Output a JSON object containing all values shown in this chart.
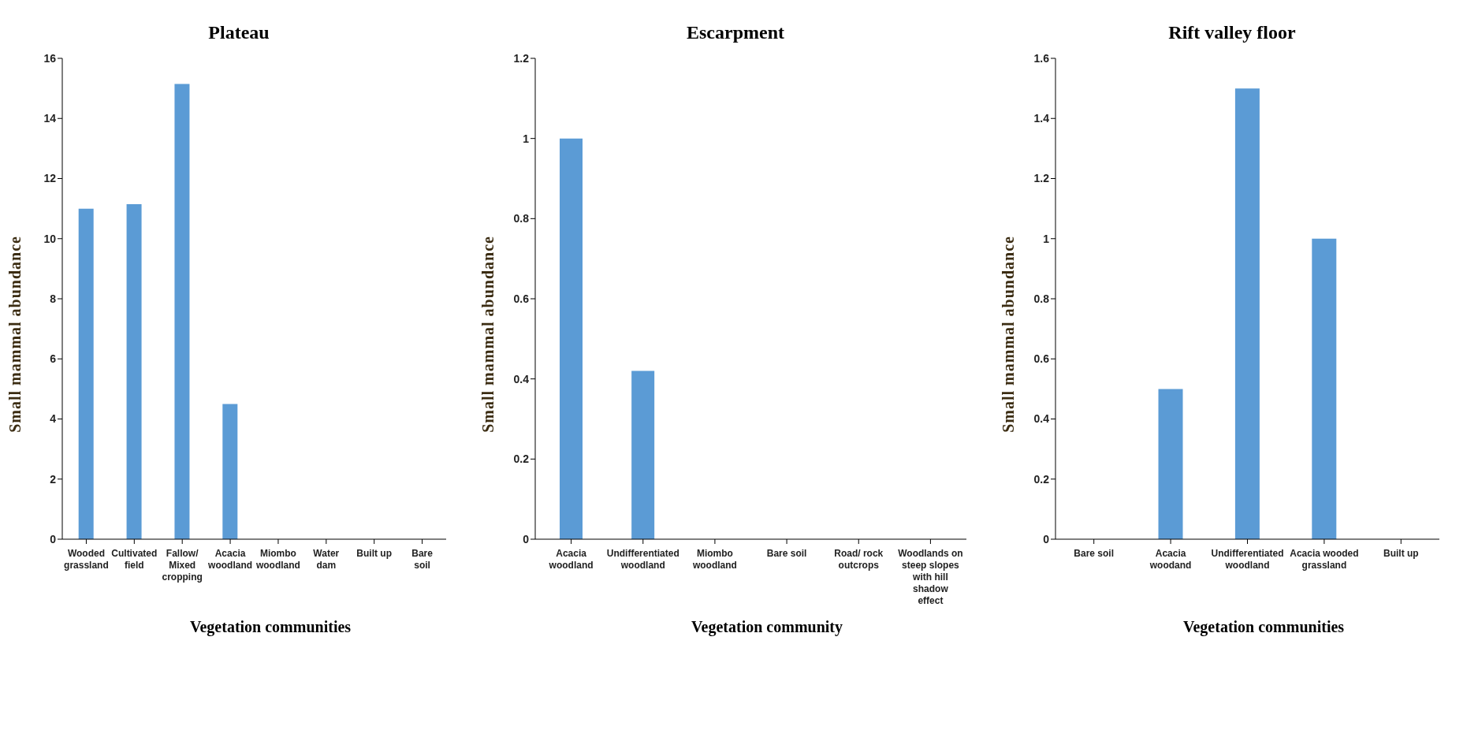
{
  "chart_data": [
    {
      "type": "bar",
      "title": "Plateau",
      "xlabel": "Vegetation communities",
      "ylabel": "Small mammal abundance",
      "categories": [
        "Wooded grassland",
        "Cultivated field",
        "Fallow/ Mixed cropping",
        "Acacia woodland",
        "Miombo woodland",
        "Water dam",
        "Built up",
        "Bare soil"
      ],
      "values": [
        11,
        11.15,
        15.15,
        4.5,
        0,
        0,
        0,
        0
      ],
      "color": "#5b9bd5",
      "ylim": [
        0,
        16
      ],
      "yticks": [
        0,
        2,
        4,
        6,
        8,
        10,
        12,
        14,
        16
      ],
      "grid": false
    },
    {
      "type": "bar",
      "title": "Escarpment",
      "xlabel": "Vegetation community",
      "ylabel": "Small mammal abundance",
      "categories": [
        "Acacia woodland",
        "Undifferentiated woodland",
        "Miombo woodland",
        "Bare soil",
        "Road/ rock outcrops",
        "Woodlands on steep slopes with hill shadow effect"
      ],
      "values": [
        1,
        0.42,
        0,
        0,
        0,
        0
      ],
      "color": "#5b9bd5",
      "ylim": [
        0,
        1.2
      ],
      "yticks": [
        0,
        0.2,
        0.4,
        0.6,
        0.8,
        1,
        1.2
      ],
      "grid": false
    },
    {
      "type": "bar",
      "title": "Rift valley floor",
      "xlabel": "Vegetation communities",
      "ylabel": "Small mammal abundance",
      "categories": [
        "Bare soil",
        "Acacia woodand",
        "Undifferentiated woodland",
        "Acacia wooded grassland",
        "Built up"
      ],
      "values": [
        0,
        0.5,
        1.5,
        1,
        0
      ],
      "color": "#5b9bd5",
      "ylim": [
        0,
        1.6
      ],
      "yticks": [
        0,
        0.2,
        0.4,
        0.6,
        0.8,
        1,
        1.2,
        1.4,
        1.6
      ],
      "grid": false
    }
  ]
}
